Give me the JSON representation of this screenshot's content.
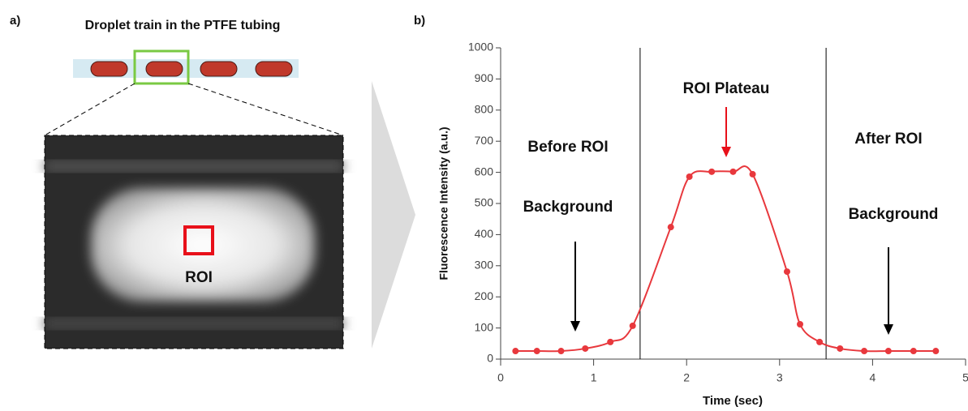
{
  "panel_a": {
    "label": "a)",
    "title": "Droplet train in the PTFE tubing",
    "roi_label": "ROI"
  },
  "chart_data": {
    "type": "line",
    "panel_label": "b)",
    "x_label": "Time (sec)",
    "y_label": "Fluorescence Intensity (a.u.)",
    "x": [
      0.16,
      0.39,
      0.65,
      0.91,
      1.18,
      1.42,
      1.83,
      2.03,
      2.27,
      2.5,
      2.71,
      3.08,
      3.22,
      3.43,
      3.65,
      3.91,
      4.17,
      4.44,
      4.68
    ],
    "values": [
      26,
      26,
      26,
      34,
      55,
      107,
      424,
      586,
      602,
      602,
      594,
      281,
      112,
      55,
      34,
      26,
      26,
      26,
      26
    ],
    "color": "#e8383d",
    "xlim": [
      0,
      5
    ],
    "xticks": [
      0,
      1,
      2,
      3,
      4,
      5
    ],
    "ylim": [
      0,
      1000
    ],
    "yticks": [
      0,
      100,
      200,
      300,
      400,
      500,
      600,
      700,
      800,
      900,
      1000
    ],
    "grid": false,
    "vlines": [
      1.5,
      3.5
    ],
    "annotations": [
      "Before ROI",
      "Background",
      "ROI Plateau",
      "After ROI",
      "Background"
    ]
  }
}
